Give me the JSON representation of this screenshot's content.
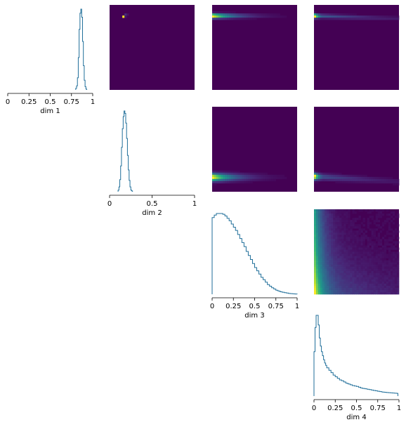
{
  "chart_data": {
    "type": "pairplot",
    "line_color": "#1f6e99",
    "heatmap_background": "#440154",
    "colormap": "viridis",
    "xlim": [
      0,
      1
    ],
    "tick_values": [
      0,
      0.25,
      0.5,
      0.75,
      1
    ],
    "tick_labels": [
      "0",
      "0.25",
      "0.5",
      "0.75",
      "1"
    ],
    "tick_labels_short": [
      "0",
      "0.5",
      "1"
    ],
    "dims": [
      {
        "name": "dim 1",
        "short_ticks": false,
        "hist": {
          "x": [
            0.8,
            0.81,
            0.82,
            0.83,
            0.84,
            0.85,
            0.86,
            0.87,
            0.88,
            0.89,
            0.9,
            0.91,
            0.92
          ],
          "values": [
            0.02,
            0.05,
            0.15,
            0.4,
            0.75,
            0.95,
            1.0,
            0.9,
            0.6,
            0.3,
            0.12,
            0.04,
            0.01
          ]
        }
      },
      {
        "name": "dim 2",
        "short_ticks": true,
        "hist": {
          "x": [
            0.1,
            0.11,
            0.12,
            0.13,
            0.14,
            0.15,
            0.16,
            0.17,
            0.18,
            0.19,
            0.2,
            0.21,
            0.22,
            0.23,
            0.24,
            0.25,
            0.26
          ],
          "values": [
            0.02,
            0.06,
            0.15,
            0.32,
            0.55,
            0.78,
            0.93,
            1.0,
            0.97,
            0.85,
            0.66,
            0.45,
            0.27,
            0.14,
            0.06,
            0.02,
            0.01
          ]
        }
      },
      {
        "name": "dim 3",
        "short_ticks": false,
        "hist": {
          "x": [
            0.0,
            0.025,
            0.05,
            0.075,
            0.1,
            0.125,
            0.15,
            0.175,
            0.2,
            0.225,
            0.25,
            0.275,
            0.3,
            0.325,
            0.35,
            0.375,
            0.4,
            0.425,
            0.45,
            0.475,
            0.5,
            0.525,
            0.55,
            0.575,
            0.6,
            0.625,
            0.65,
            0.675,
            0.7,
            0.725,
            0.75,
            0.775,
            0.8,
            0.825,
            0.85,
            0.875,
            0.9,
            0.925,
            0.95,
            0.975
          ],
          "values": [
            0.95,
            0.98,
            1.0,
            1.0,
            1.0,
            0.99,
            0.97,
            0.94,
            0.91,
            0.87,
            0.83,
            0.79,
            0.74,
            0.69,
            0.64,
            0.59,
            0.53,
            0.48,
            0.43,
            0.38,
            0.33,
            0.29,
            0.25,
            0.21,
            0.18,
            0.15,
            0.12,
            0.1,
            0.08,
            0.065,
            0.05,
            0.04,
            0.03,
            0.025,
            0.02,
            0.015,
            0.01,
            0.008,
            0.005,
            0.003
          ]
        }
      },
      {
        "name": "dim 4",
        "short_ticks": false,
        "hist": {
          "x": [
            0.0,
            0.0125,
            0.025,
            0.0375,
            0.05,
            0.0625,
            0.075,
            0.0875,
            0.1,
            0.1125,
            0.125,
            0.1375,
            0.15,
            0.175,
            0.2,
            0.225,
            0.25,
            0.275,
            0.3,
            0.325,
            0.35,
            0.375,
            0.4,
            0.425,
            0.45,
            0.475,
            0.5,
            0.525,
            0.55,
            0.575,
            0.6,
            0.625,
            0.65,
            0.675,
            0.7,
            0.725,
            0.75,
            0.775,
            0.8,
            0.825,
            0.85,
            0.875,
            0.9,
            0.925,
            0.95,
            0.975
          ],
          "values": [
            0.55,
            0.85,
            1.0,
            1.0,
            0.88,
            0.72,
            0.62,
            0.55,
            0.5,
            0.45,
            0.41,
            0.38,
            0.35,
            0.32,
            0.29,
            0.26,
            0.24,
            0.22,
            0.2,
            0.19,
            0.175,
            0.16,
            0.15,
            0.14,
            0.13,
            0.125,
            0.12,
            0.11,
            0.1,
            0.095,
            0.09,
            0.085,
            0.08,
            0.075,
            0.07,
            0.065,
            0.06,
            0.055,
            0.05,
            0.048,
            0.045,
            0.042,
            0.04,
            0.038,
            0.036,
            0.034
          ]
        }
      }
    ],
    "heatmaps": [
      {
        "row": 0,
        "col": 1,
        "x": "dim 2",
        "y": "dim 1",
        "blobs": [
          {
            "cx": 0.18,
            "cy": 0.87,
            "sx": 0.012,
            "sy": 0.01,
            "rho": 0.9,
            "w": 1.0
          }
        ]
      },
      {
        "row": 0,
        "col": 2,
        "x": "dim 3",
        "y": "dim 1",
        "ridge": {
          "cy": 0.87,
          "sy": 0.018,
          "decay": 0.22,
          "xmax": 0.9
        }
      },
      {
        "row": 0,
        "col": 3,
        "x": "dim 4",
        "y": "dim 1",
        "ridge": {
          "cy": 0.87,
          "sy": 0.016,
          "decay": 0.06,
          "xmax": 1.0,
          "tail": 0.25,
          "slope": -0.03
        }
      },
      {
        "row": 1,
        "col": 2,
        "x": "dim 3",
        "y": "dim 2",
        "ridge": {
          "cy": 0.17,
          "sy": 0.03,
          "decay": 0.22,
          "xmax": 0.9
        }
      },
      {
        "row": 1,
        "col": 3,
        "x": "dim 4",
        "y": "dim 2",
        "ridge": {
          "cy": 0.18,
          "sy": 0.025,
          "decay": 0.06,
          "xmax": 1.0,
          "tail": 0.22,
          "slope": -0.06
        }
      },
      {
        "row": 2,
        "col": 3,
        "x": "dim 4",
        "y": "dim 3",
        "fan": true
      }
    ]
  }
}
